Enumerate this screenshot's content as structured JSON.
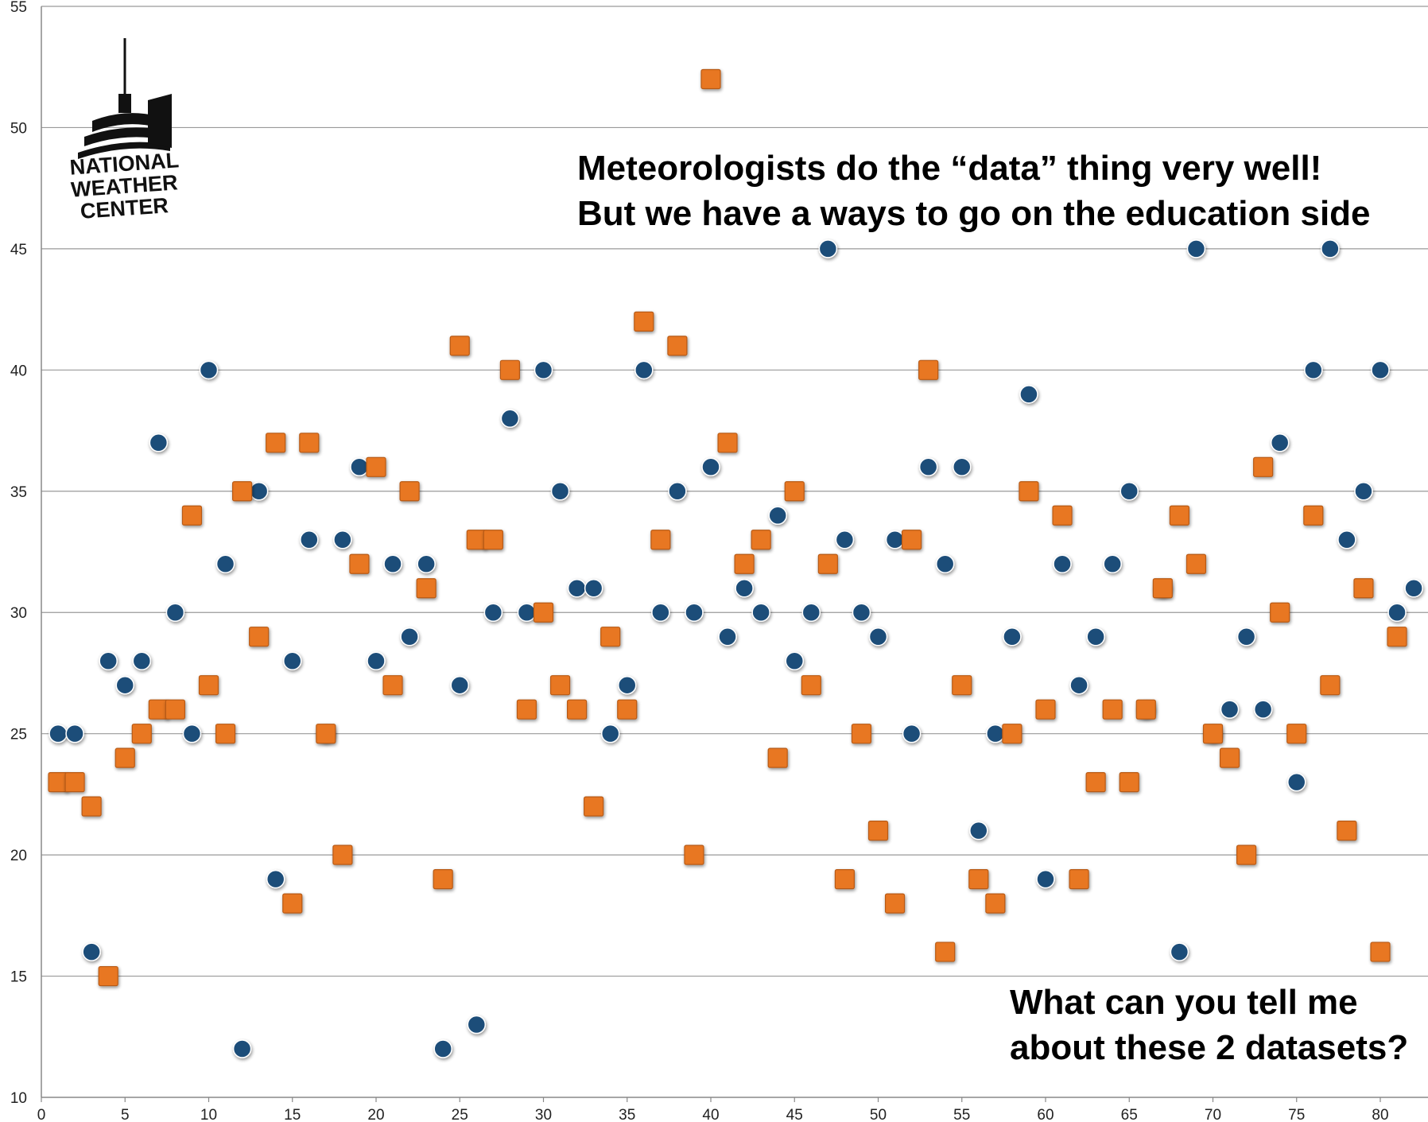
{
  "chart_data": {
    "type": "scatter",
    "title": "",
    "xlabel": "",
    "ylabel": "",
    "xlim": [
      0,
      85
    ],
    "ylim": [
      10,
      55
    ],
    "x_ticks": [
      0,
      5,
      10,
      15,
      20,
      25,
      30,
      35,
      40,
      45,
      50,
      55,
      60,
      65,
      70,
      75,
      80
    ],
    "y_ticks": [
      10,
      15,
      20,
      25,
      30,
      35,
      40,
      45,
      50,
      55
    ],
    "grid": "horizontal",
    "legend": "none",
    "series": [
      {
        "marker": "circle",
        "color": "#1F4E79",
        "x": [
          1,
          2,
          3,
          4,
          5,
          6,
          7,
          8,
          9,
          10,
          11,
          12,
          13,
          14,
          15,
          16,
          17,
          18,
          19,
          20,
          21,
          22,
          23,
          24,
          25,
          26,
          27,
          28,
          29,
          30,
          31,
          32,
          33,
          34,
          35,
          36,
          37,
          38,
          39,
          40,
          41,
          42,
          43,
          44,
          45,
          46,
          47,
          48,
          49,
          50,
          51,
          52,
          53,
          54,
          55,
          56,
          57,
          58,
          59,
          60,
          61,
          62,
          63,
          64,
          65,
          66,
          67,
          68,
          69,
          70,
          71,
          72,
          73,
          74,
          75,
          76,
          77,
          78,
          79,
          80,
          81,
          82
        ],
        "y": [
          25,
          25,
          16,
          28,
          27,
          28,
          37,
          30,
          25,
          40,
          32,
          12,
          35,
          19,
          28,
          33,
          25,
          33,
          36,
          28,
          32,
          29,
          32,
          12,
          27,
          13,
          30,
          38,
          30,
          40,
          35,
          31,
          31,
          25,
          27,
          40,
          30,
          35,
          30,
          36,
          29,
          31,
          30,
          34,
          28,
          30,
          45,
          33,
          30,
          29,
          33,
          25,
          36,
          32,
          36,
          21,
          25,
          29,
          39,
          19,
          32,
          27,
          29,
          32,
          35,
          26,
          31,
          16,
          45,
          25,
          26,
          29,
          26,
          37,
          23,
          40,
          45,
          33,
          35,
          40,
          30,
          31
        ]
      },
      {
        "marker": "square",
        "color": "#E87722",
        "x": [
          1,
          2,
          3,
          4,
          5,
          6,
          7,
          8,
          9,
          10,
          11,
          12,
          13,
          14,
          15,
          16,
          17,
          18,
          19,
          20,
          21,
          22,
          23,
          24,
          25,
          26,
          27,
          28,
          29,
          30,
          31,
          32,
          33,
          34,
          35,
          36,
          37,
          38,
          39,
          40,
          41,
          42,
          43,
          44,
          45,
          46,
          47,
          48,
          49,
          50,
          51,
          52,
          53,
          54,
          55,
          56,
          57,
          58,
          59,
          60,
          61,
          62,
          63,
          64,
          65,
          66,
          67,
          68,
          69,
          70,
          71,
          72,
          73,
          74,
          75,
          76,
          77,
          78,
          79,
          80,
          81
        ],
        "y": [
          23,
          23,
          22,
          15,
          24,
          25,
          26,
          26,
          34,
          27,
          25,
          35,
          29,
          37,
          18,
          37,
          25,
          20,
          32,
          36,
          27,
          35,
          31,
          19,
          41,
          33,
          33,
          40,
          26,
          30,
          27,
          26,
          22,
          29,
          26,
          42,
          33,
          41,
          20,
          52,
          37,
          32,
          33,
          24,
          35,
          27,
          32,
          19,
          25,
          21,
          18,
          33,
          40,
          16,
          27,
          19,
          18,
          25,
          35,
          26,
          34,
          19,
          23,
          26,
          23,
          26,
          31,
          34,
          32,
          25,
          24,
          20,
          36,
          30,
          25,
          34,
          27,
          21,
          31,
          16,
          29
        ]
      }
    ],
    "annotations": [
      "Meteorologists do the “data” thing very well!",
      "But we have a ways to go on the education side",
      "What can you tell me",
      "about these 2 datasets?"
    ],
    "logo": {
      "name": "national-weather-center-logo",
      "lines": [
        "NATIONAL",
        "WEATHER",
        "CENTER"
      ]
    }
  }
}
